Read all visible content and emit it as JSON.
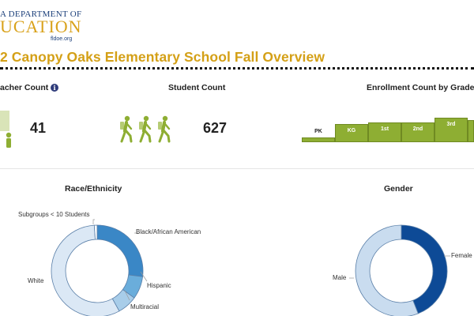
{
  "header": {
    "logo_line1": "A DEPARTMENT OF",
    "logo_line2": "UCATION",
    "logo_url": "fldoe.org",
    "page_title": "2 Canopy Oaks Elementary School Fall Overview"
  },
  "kpis": {
    "teacher_label": "acher Count",
    "teacher_info_glyph": "i",
    "teacher_value": "41",
    "student_label": "Student Count",
    "student_value": "627",
    "enrollment_label": "Enrollment Count by Grade"
  },
  "enrollment": {
    "grades": [
      {
        "label": "PK",
        "level": 0.25
      },
      {
        "label": "KG",
        "level": 0.9
      },
      {
        "label": "1st",
        "level": 1.0
      },
      {
        "label": "2nd",
        "level": 1.0
      },
      {
        "label": "3rd",
        "level": 1.25
      },
      {
        "label": "",
        "level": 1.1
      }
    ],
    "bar_color": "#8eae33"
  },
  "race": {
    "title": "Race/Ethnicity",
    "slices": [
      {
        "label": "Black/African American",
        "fraction": 0.27,
        "color": "#3a87c6"
      },
      {
        "label": "Hispanic",
        "fraction": 0.08,
        "color": "#6aaddb"
      },
      {
        "label": "Multiracial",
        "fraction": 0.07,
        "color": "#a8cde9"
      },
      {
        "label": "White",
        "fraction": 0.57,
        "color": "#dbe8f5"
      },
      {
        "label": "Subgroups < 10 Students",
        "fraction": 0.01,
        "color": "#ffffff"
      }
    ]
  },
  "gender": {
    "title": "Gender",
    "slices": [
      {
        "label": "Female",
        "fraction": 0.44,
        "color": "#0d4a96"
      },
      {
        "label": "Male",
        "fraction": 0.56,
        "color": "#c9dcef"
      }
    ]
  }
}
